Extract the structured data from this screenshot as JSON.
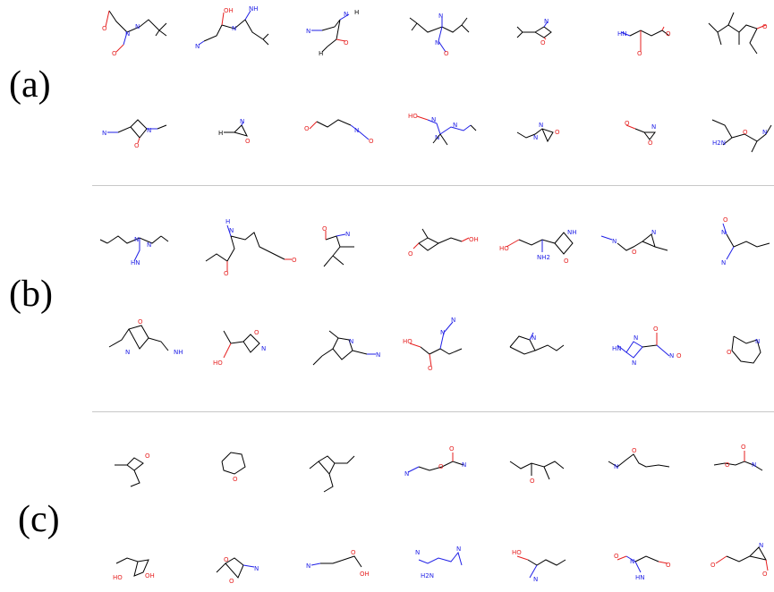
{
  "panels": [
    {
      "label": "(a)"
    },
    {
      "label": "(b)"
    },
    {
      "label": "(c)"
    }
  ],
  "atom_colors": {
    "carbon": "#000000",
    "nitrogen": "#1f1fe6",
    "oxygen": "#e61f1f"
  }
}
